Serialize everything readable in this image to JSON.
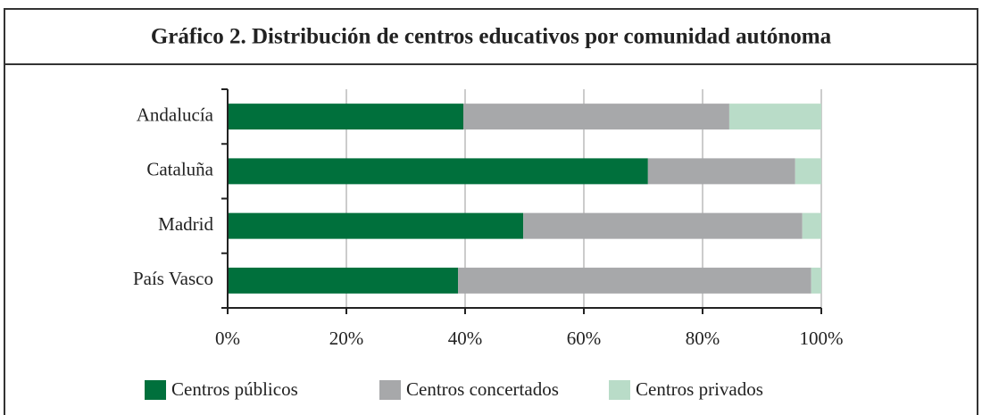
{
  "chart_data": {
    "type": "stacked_bar_horizontal",
    "title": "Gráfico 2. Distribución de centros educativos por comunidad autónoma",
    "categories": [
      "Andalucía",
      "Cataluña",
      "Madrid",
      "País Vasco"
    ],
    "series": [
      {
        "name": "Centros públicos",
        "color": "#00703c",
        "values": [
          39.7,
          70.8,
          49.8,
          38.8
        ]
      },
      {
        "name": "Centros concertados",
        "color": "#a7a8aa",
        "values": [
          44.8,
          24.8,
          47,
          59.5
        ]
      },
      {
        "name": "Centros privados",
        "color": "#b9dcc8",
        "values": [
          15.5,
          4.4,
          3.2,
          1.7
        ]
      }
    ],
    "xlim": [
      0,
      100
    ],
    "xticks": [
      {
        "value": 0,
        "label": "0%"
      },
      {
        "value": 20,
        "label": "20%"
      },
      {
        "value": 40,
        "label": "40%"
      },
      {
        "value": 60,
        "label": "60%"
      },
      {
        "value": 80,
        "label": "80%"
      },
      {
        "value": 100,
        "label": "100%"
      }
    ],
    "grid": true
  }
}
